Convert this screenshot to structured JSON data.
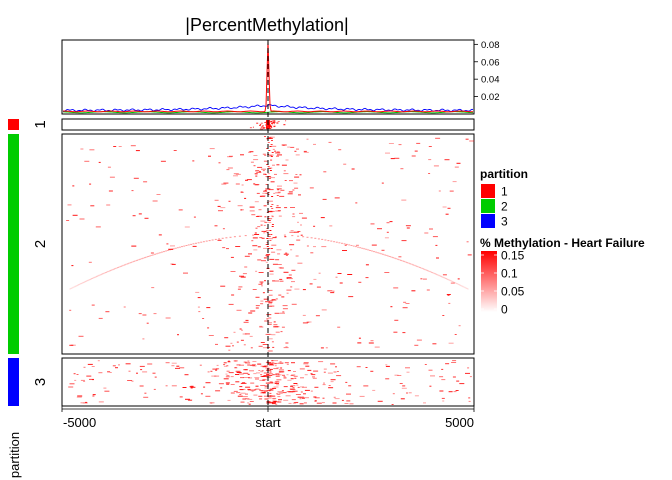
{
  "chart_data": {
    "type": "heatmap",
    "title": "|PercentMethylation|",
    "x_axis": {
      "ticks": [
        -5000,
        0,
        5000
      ],
      "tick_labels": [
        "-5000",
        "start",
        "5000"
      ],
      "range": [
        -5000,
        5000
      ],
      "reference_line": "start"
    },
    "profile": {
      "y_ticks": [
        0.02,
        0.04,
        0.06,
        0.08
      ],
      "y_tick_labels": [
        "0.02",
        "0.04",
        "0.06",
        "0.08"
      ],
      "ylim": [
        0,
        0.085
      ],
      "series": [
        {
          "partition": "1",
          "color": "#ff0000",
          "peak_x": 0,
          "peak_y": 0.083,
          "baseline": 0.003
        },
        {
          "partition": "2",
          "color": "#00c000",
          "baseline": 0.002
        },
        {
          "partition": "3",
          "color": "#0000ff",
          "near_start": 0.01,
          "baseline": 0.004
        }
      ]
    },
    "partitions": {
      "title": "partition",
      "items": [
        {
          "label": "1",
          "color": "#ff0000"
        },
        {
          "label": "2",
          "color": "#00cc00"
        },
        {
          "label": "3",
          "color": "#0000ff"
        }
      ]
    },
    "color_scale": {
      "title": "% Methylation - Heart Failure",
      "tick_labels": [
        "0.15",
        "0.1",
        "0.05",
        "0"
      ],
      "values": [
        0.15,
        0.1,
        0.05,
        0
      ],
      "low_color": "#ffffff",
      "high_color": "#ff0000"
    }
  }
}
